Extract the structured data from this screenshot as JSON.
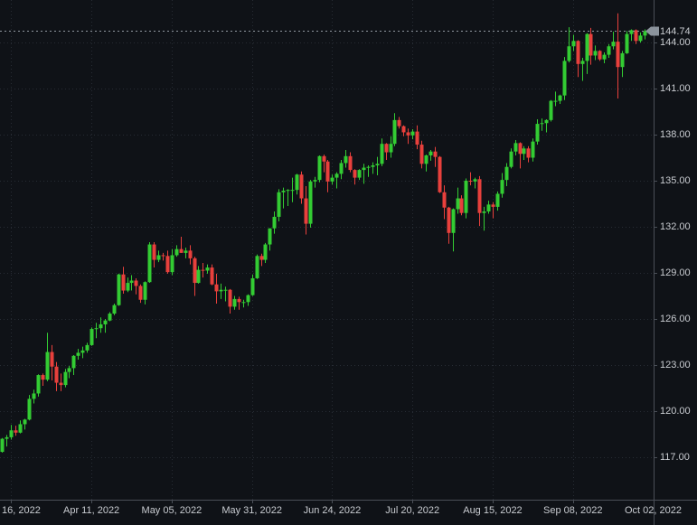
{
  "colors": {
    "background": "#0f1217",
    "bullish": "#33cc33",
    "bearish": "#e8403c",
    "grid": "#272c34",
    "axis_text": "#c9ccd1",
    "axis_border": "#4a4f57",
    "last_price_line": "#9098a1",
    "last_price_marker": "#8b939c"
  },
  "chart_data": {
    "type": "candlestick",
    "last_price": "144.74",
    "y_axis": {
      "ticks": [
        "144.00",
        "141.00",
        "138.00",
        "135.00",
        "132.00",
        "129.00",
        "126.00",
        "123.00",
        "120.00",
        "117.00"
      ]
    },
    "x_axis": {
      "labels": [
        {
          "text": "16, 2022",
          "index": 2,
          "align": "left"
        },
        {
          "text": "Apr 11, 2022",
          "index": 20,
          "align": "center"
        },
        {
          "text": "May 05, 2022",
          "index": 38,
          "align": "center"
        },
        {
          "text": "May 31, 2022",
          "index": 56,
          "align": "center"
        },
        {
          "text": "Jun 24, 2022",
          "index": 74,
          "align": "center"
        },
        {
          "text": "Jul 20, 2022",
          "index": 92,
          "align": "center"
        },
        {
          "text": "Aug 15, 2022",
          "index": 110,
          "align": "center"
        },
        {
          "text": "Sep 08, 2022",
          "index": 128,
          "align": "center"
        },
        {
          "text": "Oct 02, 2022",
          "index": 146,
          "align": "center"
        }
      ]
    },
    "candles": [
      [
        "Mar 14",
        117.35,
        118.25,
        117.3,
        118.2
      ],
      [
        "Mar 15",
        118.2,
        118.45,
        117.7,
        118.3
      ],
      [
        "Mar 16",
        118.3,
        119.1,
        118.15,
        118.75
      ],
      [
        "Mar 17",
        118.75,
        119.05,
        118.4,
        118.6
      ],
      [
        "Mar 18",
        118.6,
        119.4,
        118.55,
        119.15
      ],
      [
        "Mar 21",
        119.15,
        119.5,
        118.8,
        119.45
      ],
      [
        "Mar 22",
        119.45,
        121.05,
        119.4,
        120.8
      ],
      [
        "Mar 23",
        120.8,
        121.4,
        120.5,
        121.15
      ],
      [
        "Mar 24",
        121.15,
        122.4,
        120.95,
        122.35
      ],
      [
        "Mar 25",
        122.35,
        122.45,
        121.65,
        122.05
      ],
      [
        "Mar 28",
        122.05,
        125.1,
        121.95,
        123.85
      ],
      [
        "Mar 29",
        123.85,
        124.3,
        122.0,
        122.9
      ],
      [
        "Mar 30",
        122.9,
        123.2,
        121.3,
        121.85
      ],
      [
        "Mar 31",
        121.85,
        122.45,
        121.3,
        121.7
      ],
      [
        "Apr 01",
        121.7,
        122.75,
        121.55,
        122.55
      ],
      [
        "Apr 04",
        122.55,
        122.95,
        122.15,
        122.8
      ],
      [
        "Apr 05",
        122.8,
        123.65,
        122.35,
        123.6
      ],
      [
        "Apr 06",
        123.6,
        124.05,
        123.35,
        123.8
      ],
      [
        "Apr 07",
        123.8,
        124.2,
        123.45,
        123.95
      ],
      [
        "Apr 08",
        123.95,
        124.45,
        123.8,
        124.3
      ],
      [
        "Apr 11",
        124.3,
        125.45,
        124.25,
        125.35
      ],
      [
        "Apr 12",
        125.35,
        125.75,
        124.75,
        125.4
      ],
      [
        "Apr 13",
        125.4,
        126.1,
        125.1,
        125.65
      ],
      [
        "Apr 14",
        125.65,
        126.0,
        125.1,
        125.9
      ],
      [
        "Apr 15",
        125.9,
        126.45,
        125.85,
        126.35
      ],
      [
        "Apr 18",
        126.35,
        127.0,
        126.25,
        126.9
      ],
      [
        "Apr 19",
        126.9,
        128.95,
        126.85,
        128.9
      ],
      [
        "Apr 20",
        128.9,
        129.4,
        127.65,
        127.85
      ],
      [
        "Apr 21",
        127.85,
        128.7,
        127.75,
        128.35
      ],
      [
        "Apr 22",
        128.35,
        128.85,
        127.85,
        128.5
      ],
      [
        "Apr 25",
        128.5,
        128.65,
        127.6,
        128.15
      ],
      [
        "Apr 26",
        128.15,
        128.25,
        127.05,
        127.25
      ],
      [
        "Apr 27",
        127.25,
        128.45,
        126.95,
        128.4
      ],
      [
        "Apr 28",
        128.4,
        131.0,
        128.35,
        130.85
      ],
      [
        "Apr 29",
        130.85,
        131.0,
        129.35,
        129.85
      ],
      [
        "May 02",
        129.85,
        130.45,
        129.7,
        130.15
      ],
      [
        "May 03",
        130.15,
        130.3,
        129.8,
        130.1
      ],
      [
        "May 04",
        130.1,
        130.45,
        128.95,
        129.05
      ],
      [
        "May 05",
        129.05,
        130.55,
        128.85,
        130.15
      ],
      [
        "May 06",
        130.15,
        130.8,
        130.05,
        130.55
      ],
      [
        "May 09",
        130.55,
        131.35,
        130.3,
        130.3
      ],
      [
        "May 10",
        130.3,
        130.65,
        129.95,
        130.45
      ],
      [
        "May 11",
        130.45,
        130.8,
        129.55,
        129.95
      ],
      [
        "May 12",
        129.95,
        130.05,
        127.5,
        128.35
      ],
      [
        "May 13",
        128.35,
        129.45,
        128.3,
        129.2
      ],
      [
        "May 16",
        129.2,
        129.65,
        128.7,
        129.15
      ],
      [
        "May 17",
        129.15,
        129.55,
        128.95,
        129.35
      ],
      [
        "May 18",
        129.35,
        129.55,
        128.2,
        128.25
      ],
      [
        "May 19",
        128.25,
        128.95,
        127.0,
        127.8
      ],
      [
        "May 20",
        127.8,
        128.3,
        127.3,
        127.9
      ],
      [
        "May 23",
        127.9,
        128.1,
        127.15,
        127.9
      ],
      [
        "May 24",
        127.9,
        127.95,
        126.35,
        126.8
      ],
      [
        "May 25",
        126.8,
        127.5,
        126.6,
        127.3
      ],
      [
        "May 26",
        127.3,
        127.45,
        126.6,
        127.1
      ],
      [
        "May 27",
        127.1,
        127.25,
        126.75,
        127.1
      ],
      [
        "May 30",
        127.1,
        127.6,
        126.85,
        127.55
      ],
      [
        "May 31",
        127.55,
        128.9,
        127.5,
        128.65
      ],
      [
        "Jun 01",
        128.65,
        130.2,
        128.6,
        130.1
      ],
      [
        "Jun 02",
        130.1,
        130.25,
        129.45,
        129.85
      ],
      [
        "Jun 03",
        129.85,
        130.95,
        129.65,
        130.85
      ],
      [
        "Jun 06",
        130.85,
        131.9,
        130.45,
        131.9
      ],
      [
        "Jun 07",
        131.9,
        133.0,
        131.55,
        132.65
      ],
      [
        "Jun 08",
        132.65,
        134.45,
        132.35,
        134.25
      ],
      [
        "Jun 09",
        134.25,
        134.55,
        133.2,
        134.35
      ],
      [
        "Jun 10",
        134.35,
        134.45,
        133.35,
        134.4
      ],
      [
        "Jun 13",
        134.4,
        135.2,
        133.6,
        134.4
      ],
      [
        "Jun 14",
        134.4,
        135.45,
        134.1,
        135.4
      ],
      [
        "Jun 15",
        135.4,
        135.6,
        133.5,
        133.85
      ],
      [
        "Jun 16",
        133.85,
        134.65,
        131.5,
        132.2
      ],
      [
        "Jun 17",
        132.2,
        135.05,
        131.95,
        134.95
      ],
      [
        "Jun 20",
        134.95,
        135.25,
        134.55,
        135.05
      ],
      [
        "Jun 21",
        135.05,
        136.65,
        134.9,
        136.6
      ],
      [
        "Jun 22",
        136.6,
        136.7,
        135.55,
        136.25
      ],
      [
        "Jun 23",
        136.25,
        136.35,
        134.25,
        134.95
      ],
      [
        "Jun 24",
        134.95,
        135.4,
        134.75,
        135.2
      ],
      [
        "Jun 27",
        135.2,
        135.55,
        134.5,
        135.45
      ],
      [
        "Jun 28",
        135.45,
        136.35,
        135.1,
        136.15
      ],
      [
        "Jun 29",
        136.15,
        137.0,
        135.85,
        136.6
      ],
      [
        "Jun 30",
        136.6,
        136.85,
        135.55,
        135.7
      ],
      [
        "Jul 01",
        135.7,
        135.75,
        134.75,
        135.2
      ],
      [
        "Jul 04",
        135.2,
        135.75,
        135.05,
        135.7
      ],
      [
        "Jul 05",
        135.7,
        136.1,
        134.8,
        135.85
      ],
      [
        "Jul 06",
        135.85,
        136.0,
        135.25,
        135.9
      ],
      [
        "Jul 07",
        135.9,
        136.2,
        135.45,
        136.0
      ],
      [
        "Jul 08",
        136.0,
        136.55,
        135.35,
        136.1
      ],
      [
        "Jul 11",
        136.1,
        137.75,
        135.95,
        137.4
      ],
      [
        "Jul 12",
        137.4,
        137.45,
        136.35,
        136.85
      ],
      [
        "Jul 13",
        136.85,
        137.9,
        136.5,
        137.4
      ],
      [
        "Jul 14",
        137.4,
        139.4,
        137.25,
        138.95
      ],
      [
        "Jul 15",
        138.95,
        139.15,
        138.4,
        138.55
      ],
      [
        "Jul 18",
        138.55,
        138.6,
        137.9,
        138.15
      ],
      [
        "Jul 19",
        138.15,
        138.4,
        137.4,
        137.95
      ],
      [
        "Jul 20",
        137.95,
        138.35,
        137.7,
        138.2
      ],
      [
        "Jul 21",
        138.2,
        138.6,
        137.05,
        137.35
      ],
      [
        "Jul 22",
        137.35,
        137.6,
        135.8,
        136.1
      ],
      [
        "Jul 25",
        136.1,
        136.7,
        135.6,
        136.65
      ],
      [
        "Jul 26",
        136.65,
        137.0,
        136.3,
        136.9
      ],
      [
        "Jul 27",
        136.9,
        137.2,
        135.9,
        136.55
      ],
      [
        "Jul 28",
        136.55,
        136.6,
        134.2,
        134.25
      ],
      [
        "Jul 29",
        134.25,
        134.7,
        132.5,
        133.25
      ],
      [
        "Aug 01",
        133.25,
        133.3,
        130.9,
        131.6
      ],
      [
        "Aug 02",
        131.6,
        133.2,
        130.4,
        133.15
      ],
      [
        "Aug 03",
        133.15,
        134.55,
        132.85,
        133.85
      ],
      [
        "Aug 04",
        133.85,
        134.05,
        132.75,
        132.9
      ],
      [
        "Aug 05",
        132.9,
        135.15,
        132.55,
        135.0
      ],
      [
        "Aug 08",
        135.0,
        135.55,
        134.7,
        134.95
      ],
      [
        "Aug 09",
        134.95,
        135.2,
        134.5,
        135.1
      ],
      [
        "Aug 10",
        135.1,
        135.3,
        132.05,
        132.9
      ],
      [
        "Aug 11",
        132.9,
        133.3,
        131.75,
        133.0
      ],
      [
        "Aug 12",
        133.0,
        133.7,
        132.85,
        133.45
      ],
      [
        "Aug 15",
        133.45,
        133.6,
        132.55,
        133.3
      ],
      [
        "Aug 16",
        133.3,
        134.3,
        133.05,
        134.15
      ],
      [
        "Aug 17",
        134.15,
        135.5,
        133.9,
        135.05
      ],
      [
        "Aug 18",
        135.05,
        136.15,
        134.65,
        135.9
      ],
      [
        "Aug 19",
        135.9,
        137.1,
        135.8,
        136.9
      ],
      [
        "Aug 22",
        136.9,
        137.65,
        136.65,
        137.45
      ],
      [
        "Aug 23",
        137.45,
        137.5,
        135.8,
        136.75
      ],
      [
        "Aug 24",
        136.75,
        137.25,
        136.35,
        137.1
      ],
      [
        "Aug 25",
        137.1,
        137.25,
        136.2,
        136.5
      ],
      [
        "Aug 26",
        136.5,
        137.75,
        136.25,
        137.55
      ],
      [
        "Aug 29",
        137.55,
        139.0,
        137.35,
        138.7
      ],
      [
        "Aug 30",
        138.7,
        139.05,
        138.25,
        138.75
      ],
      [
        "Aug 31",
        138.75,
        139.0,
        138.15,
        138.95
      ],
      [
        "Sep 01",
        138.95,
        140.25,
        138.85,
        140.2
      ],
      [
        "Sep 02",
        140.2,
        140.8,
        139.85,
        140.2
      ],
      [
        "Sep 05",
        140.2,
        140.6,
        140.0,
        140.55
      ],
      [
        "Sep 06",
        140.55,
        143.05,
        140.25,
        142.8
      ],
      [
        "Sep 07",
        142.8,
        144.99,
        142.7,
        143.75
      ],
      [
        "Sep 08",
        143.75,
        144.5,
        143.45,
        144.1
      ],
      [
        "Sep 09",
        144.1,
        144.15,
        141.75,
        142.6
      ],
      [
        "Sep 12",
        142.6,
        143.0,
        141.5,
        142.8
      ],
      [
        "Sep 13",
        142.8,
        144.6,
        141.95,
        144.55
      ],
      [
        "Sep 14",
        144.55,
        144.95,
        142.55,
        143.15
      ],
      [
        "Sep 15",
        143.15,
        143.8,
        142.85,
        143.45
      ],
      [
        "Sep 16",
        143.45,
        143.5,
        142.8,
        142.9
      ],
      [
        "Sep 19",
        142.9,
        143.35,
        142.65,
        143.2
      ],
      [
        "Sep 20",
        143.2,
        143.9,
        143.0,
        143.75
      ],
      [
        "Sep 21",
        143.75,
        144.7,
        143.55,
        144.05
      ],
      [
        "Sep 22",
        144.05,
        145.9,
        140.35,
        142.4
      ],
      [
        "Sep 23",
        142.4,
        143.45,
        141.75,
        143.3
      ],
      [
        "Sep 26",
        143.3,
        144.75,
        143.25,
        144.55
      ],
      [
        "Sep 27",
        144.55,
        144.85,
        144.1,
        144.8
      ],
      [
        "Sep 28",
        144.8,
        144.85,
        143.9,
        144.1
      ],
      [
        "Sep 29",
        144.1,
        144.65,
        144.0,
        144.45
      ],
      [
        "Sep 30",
        144.45,
        144.85,
        144.2,
        144.74
      ]
    ]
  }
}
